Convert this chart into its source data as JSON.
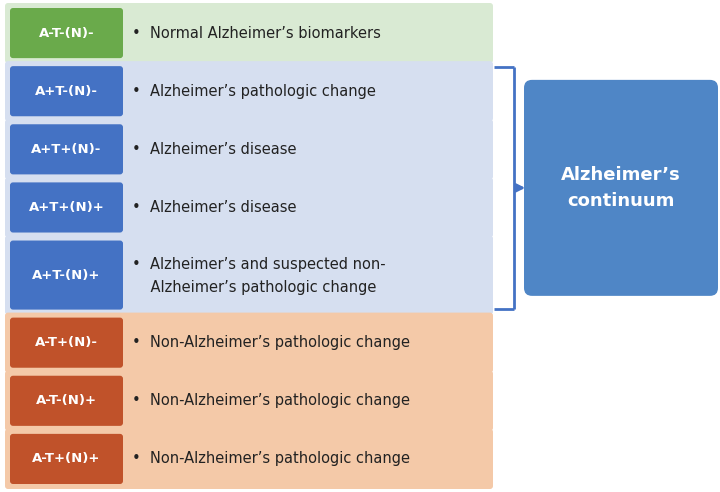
{
  "rows": [
    {
      "label": "A-T-(N)-",
      "label_bg": "#6aaa4b",
      "row_bg": "#d9ead3",
      "text": "•  Normal Alzheimer’s biomarkers",
      "text2": null,
      "in_continuum": false
    },
    {
      "label": "A+T-(N)-",
      "label_bg": "#4472c4",
      "row_bg": "#d6dff0",
      "text": "•  Alzheimer’s pathologic change",
      "text2": null,
      "in_continuum": true
    },
    {
      "label": "A+T+(N)-",
      "label_bg": "#4472c4",
      "row_bg": "#d6dff0",
      "text": "•  Alzheimer’s disease",
      "text2": null,
      "in_continuum": true
    },
    {
      "label": "A+T+(N)+",
      "label_bg": "#4472c4",
      "row_bg": "#d6dff0",
      "text": "•  Alzheimer’s disease",
      "text2": null,
      "in_continuum": true
    },
    {
      "label": "A+T-(N)+",
      "label_bg": "#4472c4",
      "row_bg": "#d6dff0",
      "text": "•  Alzheimer’s and suspected non-",
      "text2": "    Alzheimer’s pathologic change",
      "in_continuum": true
    },
    {
      "label": "A-T+(N)-",
      "label_bg": "#c0522a",
      "row_bg": "#f4c9a8",
      "text": "•  Non-Alzheimer’s pathologic change",
      "text2": null,
      "in_continuum": false
    },
    {
      "label": "A-T-(N)+",
      "label_bg": "#c0522a",
      "row_bg": "#f4c9a8",
      "text": "•  Non-Alzheimer’s pathologic change",
      "text2": null,
      "in_continuum": false
    },
    {
      "label": "A-T+(N)+",
      "label_bg": "#c0522a",
      "row_bg": "#f4c9a8",
      "text": "•  Non-Alzheimer’s pathologic change",
      "text2": null,
      "in_continuum": false
    }
  ],
  "continuum_box": {
    "text": "Alzheimer’s\ncontinuum",
    "bg": "#4f86c6",
    "text_color": "#ffffff"
  },
  "background_color": "#ffffff",
  "label_text_color": "#ffffff",
  "row_text_color": "#222222",
  "font_size_label": 9.5,
  "font_size_text": 10.5,
  "font_size_continuum": 13
}
